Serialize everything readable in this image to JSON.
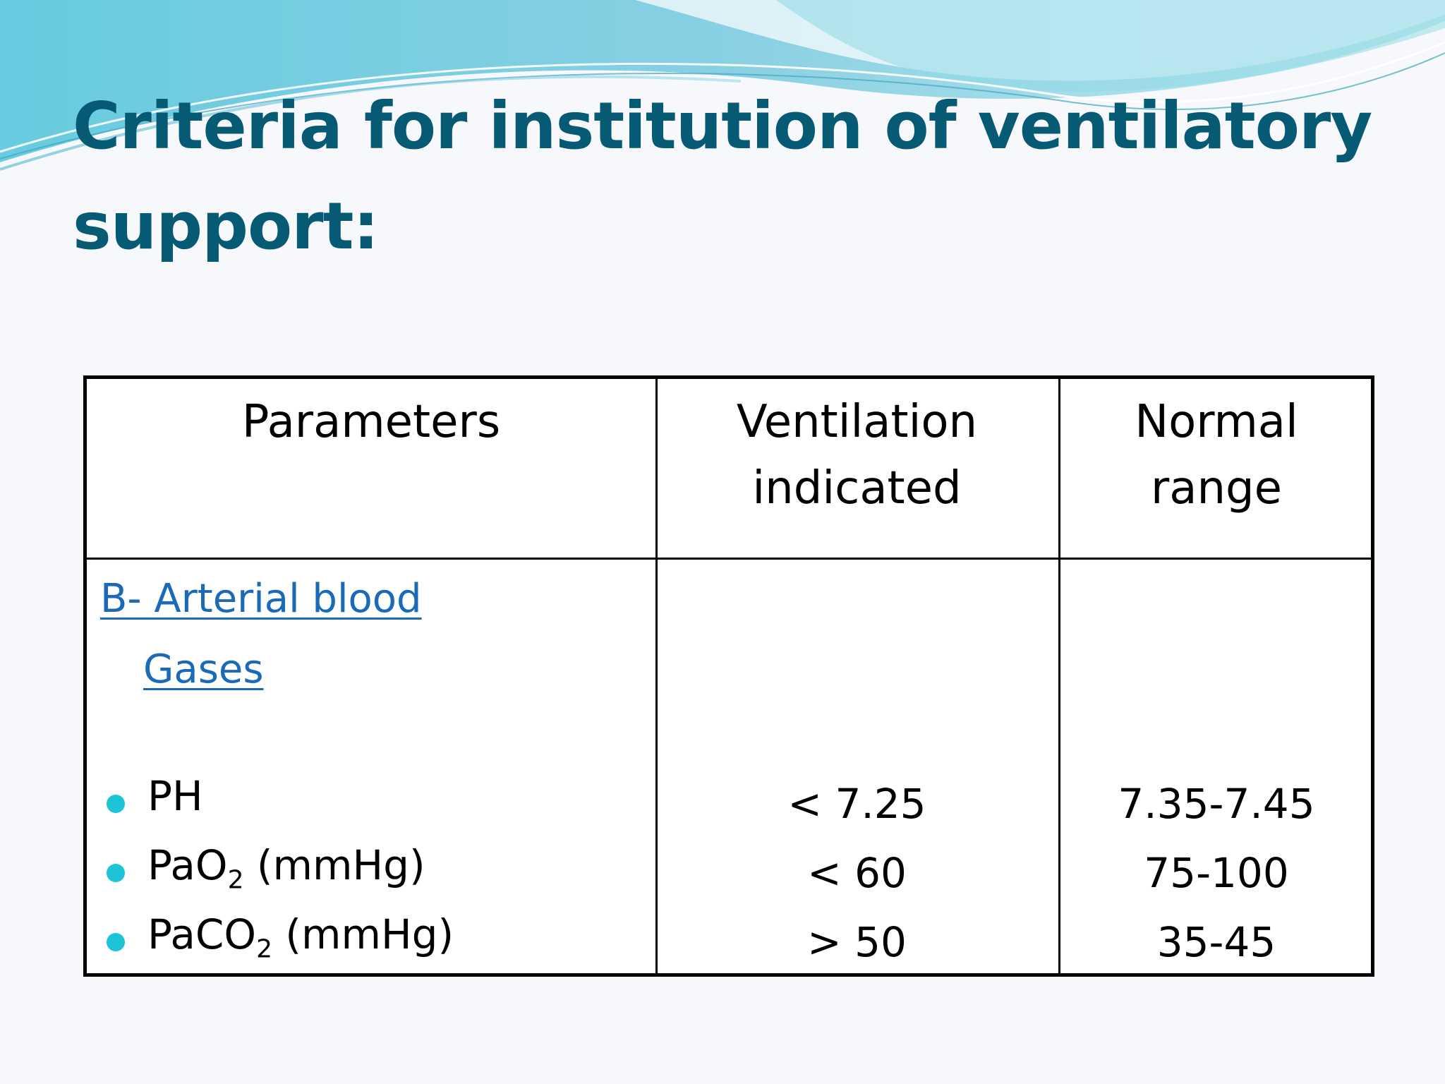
{
  "slide": {
    "title": "Criteria for institution of ventilatory support:",
    "colors": {
      "title": "#075a74",
      "link": "#1a6ab8",
      "bullet": "#1cc4d6",
      "border": "#000000"
    }
  },
  "table": {
    "headers": {
      "parameters": "Parameters",
      "ventilation_line1": "Ventilation",
      "ventilation_line2": "indicated",
      "normal_line1": "Normal",
      "normal_line2": "range"
    },
    "section": {
      "line1": "B- Arterial blood",
      "line2": "Gases"
    },
    "rows": [
      {
        "param": "PH",
        "sub": "",
        "unit": "",
        "indicated": "< 7.25",
        "normal": "7.35-7.45"
      },
      {
        "param": "PaO",
        "sub": "2",
        "unit": " (mmHg)",
        "indicated": "< 60",
        "normal": "75-100"
      },
      {
        "param": "PaCO",
        "sub": "2",
        "unit": " (mmHg)",
        "indicated": "> 50",
        "normal": "35-45"
      }
    ]
  }
}
